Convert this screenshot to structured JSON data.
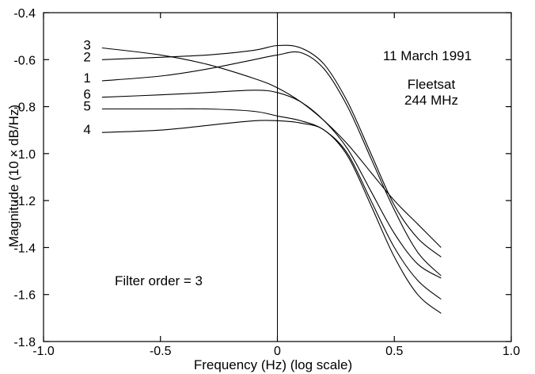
{
  "chart_data": {
    "type": "line",
    "title": "",
    "xlabel": "Frequency (Hz) (log scale)",
    "ylabel": "Magnitude (10 × dB/Hz)",
    "xlim": [
      -1.0,
      1.0
    ],
    "ylim": [
      -1.8,
      -0.4
    ],
    "x_ticks": [
      "-1.0",
      "-0.5",
      "0",
      "0.5",
      "1.0"
    ],
    "y_ticks": [
      "-1.8",
      "-1.6",
      "-1.4",
      "-1.2",
      "-1.0",
      "-0.8",
      "-0.6",
      "-0.4"
    ],
    "x_tick_values": [
      -1.0,
      -0.5,
      0,
      0.5,
      1.0
    ],
    "y_tick_values": [
      -1.8,
      -1.6,
      -1.4,
      -1.2,
      -1.0,
      -0.8,
      -0.6,
      -0.4
    ],
    "vertical_line_x": 0,
    "grid": false,
    "annotations": {
      "date": "11 March 1991",
      "satellite": "Fleetsat",
      "frequency": "244 MHz",
      "filter_order": "Filter order = 3"
    },
    "series": [
      {
        "name": "3",
        "x": [
          -0.75,
          -0.5,
          -0.3,
          -0.1,
          0.0,
          0.1,
          0.2,
          0.3,
          0.4,
          0.5,
          0.6,
          0.7
        ],
        "y": [
          -0.55,
          -0.58,
          -0.62,
          -0.68,
          -0.72,
          -0.78,
          -0.86,
          -0.96,
          -1.08,
          -1.2,
          -1.3,
          -1.4
        ]
      },
      {
        "name": "2",
        "x": [
          -0.75,
          -0.5,
          -0.3,
          -0.1,
          0.0,
          0.1,
          0.2,
          0.3,
          0.4,
          0.5,
          0.6,
          0.7
        ],
        "y": [
          -0.6,
          -0.59,
          -0.58,
          -0.56,
          -0.54,
          -0.55,
          -0.62,
          -0.78,
          -1.0,
          -1.22,
          -1.36,
          -1.44
        ]
      },
      {
        "name": "1",
        "x": [
          -0.75,
          -0.5,
          -0.3,
          -0.1,
          0.0,
          0.1,
          0.2,
          0.3,
          0.4,
          0.5,
          0.6,
          0.7
        ],
        "y": [
          -0.69,
          -0.67,
          -0.64,
          -0.6,
          -0.58,
          -0.57,
          -0.64,
          -0.8,
          -1.02,
          -1.24,
          -1.42,
          -1.52
        ]
      },
      {
        "name": "6",
        "x": [
          -0.75,
          -0.5,
          -0.3,
          -0.1,
          0.0,
          0.1,
          0.2,
          0.3,
          0.4,
          0.5,
          0.6,
          0.7
        ],
        "y": [
          -0.76,
          -0.75,
          -0.74,
          -0.73,
          -0.74,
          -0.78,
          -0.86,
          -0.98,
          -1.16,
          -1.34,
          -1.47,
          -1.53
        ]
      },
      {
        "name": "5",
        "x": [
          -0.75,
          -0.5,
          -0.3,
          -0.1,
          0.0,
          0.1,
          0.2,
          0.3,
          0.4,
          0.5,
          0.6,
          0.7
        ],
        "y": [
          -0.81,
          -0.81,
          -0.81,
          -0.82,
          -0.84,
          -0.86,
          -0.9,
          -1.0,
          -1.2,
          -1.4,
          -1.54,
          -1.62
        ]
      },
      {
        "name": "4",
        "x": [
          -0.75,
          -0.5,
          -0.3,
          -0.1,
          0.0,
          0.1,
          0.2,
          0.3,
          0.4,
          0.5,
          0.6,
          0.7
        ],
        "y": [
          -0.91,
          -0.9,
          -0.88,
          -0.86,
          -0.86,
          -0.87,
          -0.9,
          -1.01,
          -1.22,
          -1.44,
          -1.6,
          -1.68
        ]
      }
    ]
  }
}
